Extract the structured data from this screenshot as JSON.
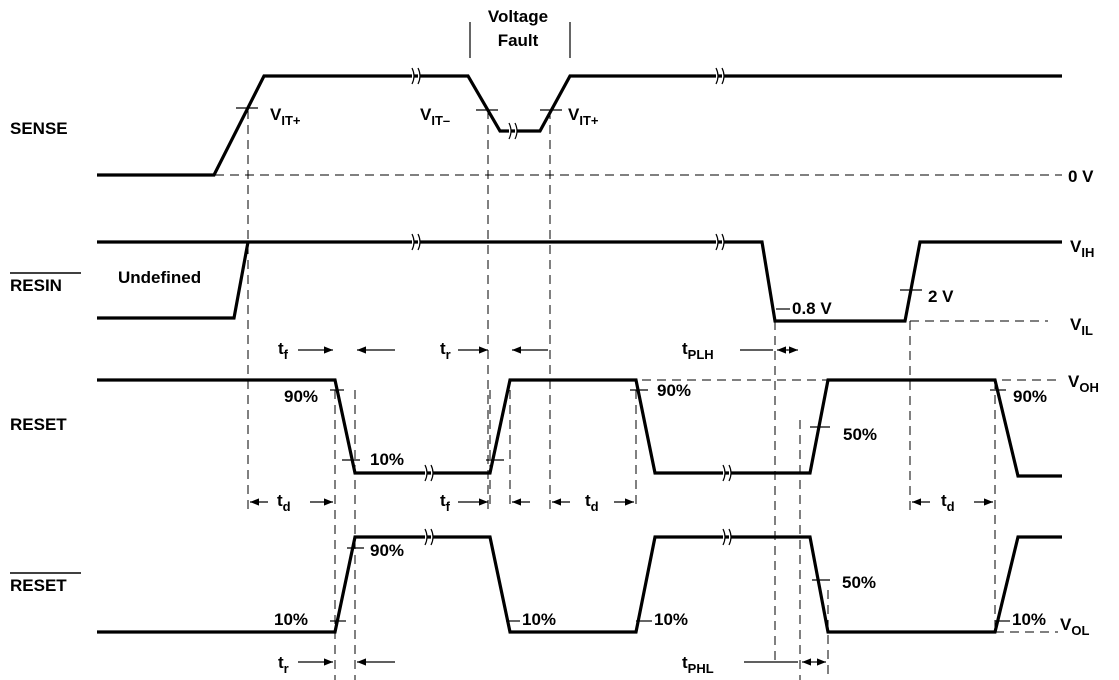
{
  "signals": {
    "sense": "SENSE",
    "resin": "RESIN",
    "reset": "RESET",
    "reset_bar": "RESET"
  },
  "header": {
    "voltage": "Voltage",
    "fault": "Fault"
  },
  "levels": {
    "zero_v": "0 V",
    "vih_main": "V",
    "vih_sub": "IH",
    "vil_main": "V",
    "vil_sub": "IL",
    "voh_main": "V",
    "voh_sub": "OH",
    "vol_main": "V",
    "vol_sub": "OL",
    "vit_plus_main": "V",
    "vit_plus_sub": "IT+",
    "vit_minus_main": "V",
    "vit_minus_sub": "IT–",
    "zero_eight_v": "0.8 V",
    "two_v": "2 V"
  },
  "annotations": {
    "undefined": "Undefined",
    "pct90": "90%",
    "pct10": "10%",
    "pct50": "50%"
  },
  "timing": {
    "t_main": "t",
    "f_sub": "f",
    "r_sub": "r",
    "d_sub": "d",
    "plh_sub": "PLH",
    "phl_sub": "PHL"
  }
}
